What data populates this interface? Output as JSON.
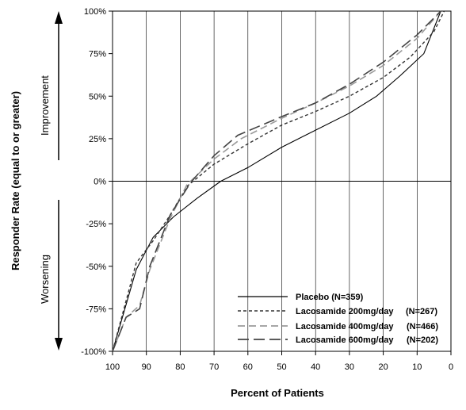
{
  "chart_data": {
    "type": "line",
    "xlabel": "Percent of Patients",
    "ylabel": "Responder Rate (equal to or greater)",
    "x_ticks": [
      "100",
      "90",
      "80",
      "70",
      "60",
      "50",
      "40",
      "30",
      "20",
      "10",
      "0"
    ],
    "y_ticks": [
      "100%",
      "75%",
      "50%",
      "25%",
      "0%",
      "-25%",
      "-50%",
      "-75%",
      "-100%"
    ],
    "xlim": [
      100,
      0
    ],
    "ylim": [
      -100,
      100
    ],
    "grid": "vertical",
    "legend_position": "bottom-right",
    "annotations": {
      "up": "Improvement",
      "down": "Worsening"
    },
    "reference_line_y": 0,
    "series": [
      {
        "name": "Placebo",
        "n_label": "(N=359)",
        "style": "solid",
        "points": [
          [
            100,
            -100
          ],
          [
            93,
            -52
          ],
          [
            88,
            -33
          ],
          [
            82,
            -21
          ],
          [
            75,
            -10
          ],
          [
            68,
            0
          ],
          [
            60,
            8
          ],
          [
            50,
            20
          ],
          [
            40,
            30
          ],
          [
            30,
            40
          ],
          [
            22,
            50
          ],
          [
            15,
            62
          ],
          [
            8,
            75
          ],
          [
            3,
            100
          ]
        ]
      },
      {
        "name": "Lacosamide 200mg/day",
        "n_label": "(N=267)",
        "style": "short-dash",
        "points": [
          [
            100,
            -100
          ],
          [
            93,
            -48
          ],
          [
            88,
            -35
          ],
          [
            83,
            -20
          ],
          [
            78,
            -3
          ],
          [
            70,
            10
          ],
          [
            60,
            22
          ],
          [
            50,
            33
          ],
          [
            40,
            41
          ],
          [
            30,
            50
          ],
          [
            20,
            61
          ],
          [
            12,
            73
          ],
          [
            5,
            88
          ],
          [
            2,
            100
          ]
        ]
      },
      {
        "name": "Lacosamide 400mg/day",
        "n_label": "(N=466)",
        "style": "medium-dash",
        "points": [
          [
            100,
            -100
          ],
          [
            96,
            -80
          ],
          [
            92,
            -73
          ],
          [
            89,
            -52
          ],
          [
            83,
            -22
          ],
          [
            78,
            -2
          ],
          [
            70,
            13
          ],
          [
            62,
            25
          ],
          [
            50,
            37
          ],
          [
            40,
            46
          ],
          [
            30,
            56
          ],
          [
            20,
            68
          ],
          [
            10,
            84
          ],
          [
            3,
            100
          ]
        ]
      },
      {
        "name": "Lacosamide 600mg/day",
        "n_label": "(N=202)",
        "style": "long-dash",
        "points": [
          [
            100,
            -100
          ],
          [
            96,
            -80
          ],
          [
            92,
            -75
          ],
          [
            89,
            -50
          ],
          [
            83,
            -20
          ],
          [
            77,
            -1
          ],
          [
            70,
            15
          ],
          [
            63,
            27
          ],
          [
            50,
            38
          ],
          [
            40,
            46
          ],
          [
            30,
            57
          ],
          [
            20,
            70
          ],
          [
            10,
            86
          ],
          [
            3,
            100
          ]
        ]
      }
    ]
  }
}
